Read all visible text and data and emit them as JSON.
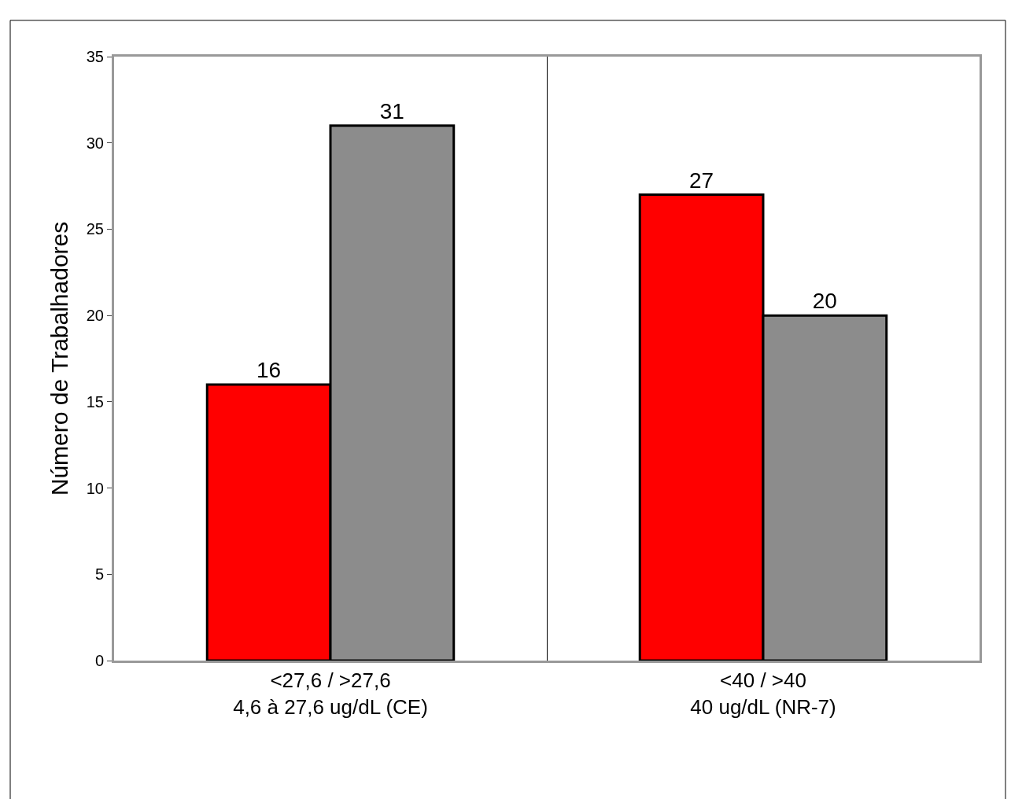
{
  "chart_data": {
    "type": "bar",
    "ylabel": "Número de Trabalhadores",
    "categories": [
      "<27,6 / >27,6\n4,6 à 27,6 ug/dL (CE)",
      "<40 / >40\n40 ug/dL (NR-7)"
    ],
    "series": [
      {
        "color": "#ff0000",
        "values": [
          16,
          27
        ]
      },
      {
        "color": "#8c8c8c",
        "values": [
          31,
          20
        ]
      }
    ],
    "ylim": [
      0,
      35
    ],
    "yticks": [
      0,
      5,
      10,
      15,
      20,
      25,
      30,
      35
    ],
    "grid": "x",
    "legend": false,
    "data_labels": true
  }
}
